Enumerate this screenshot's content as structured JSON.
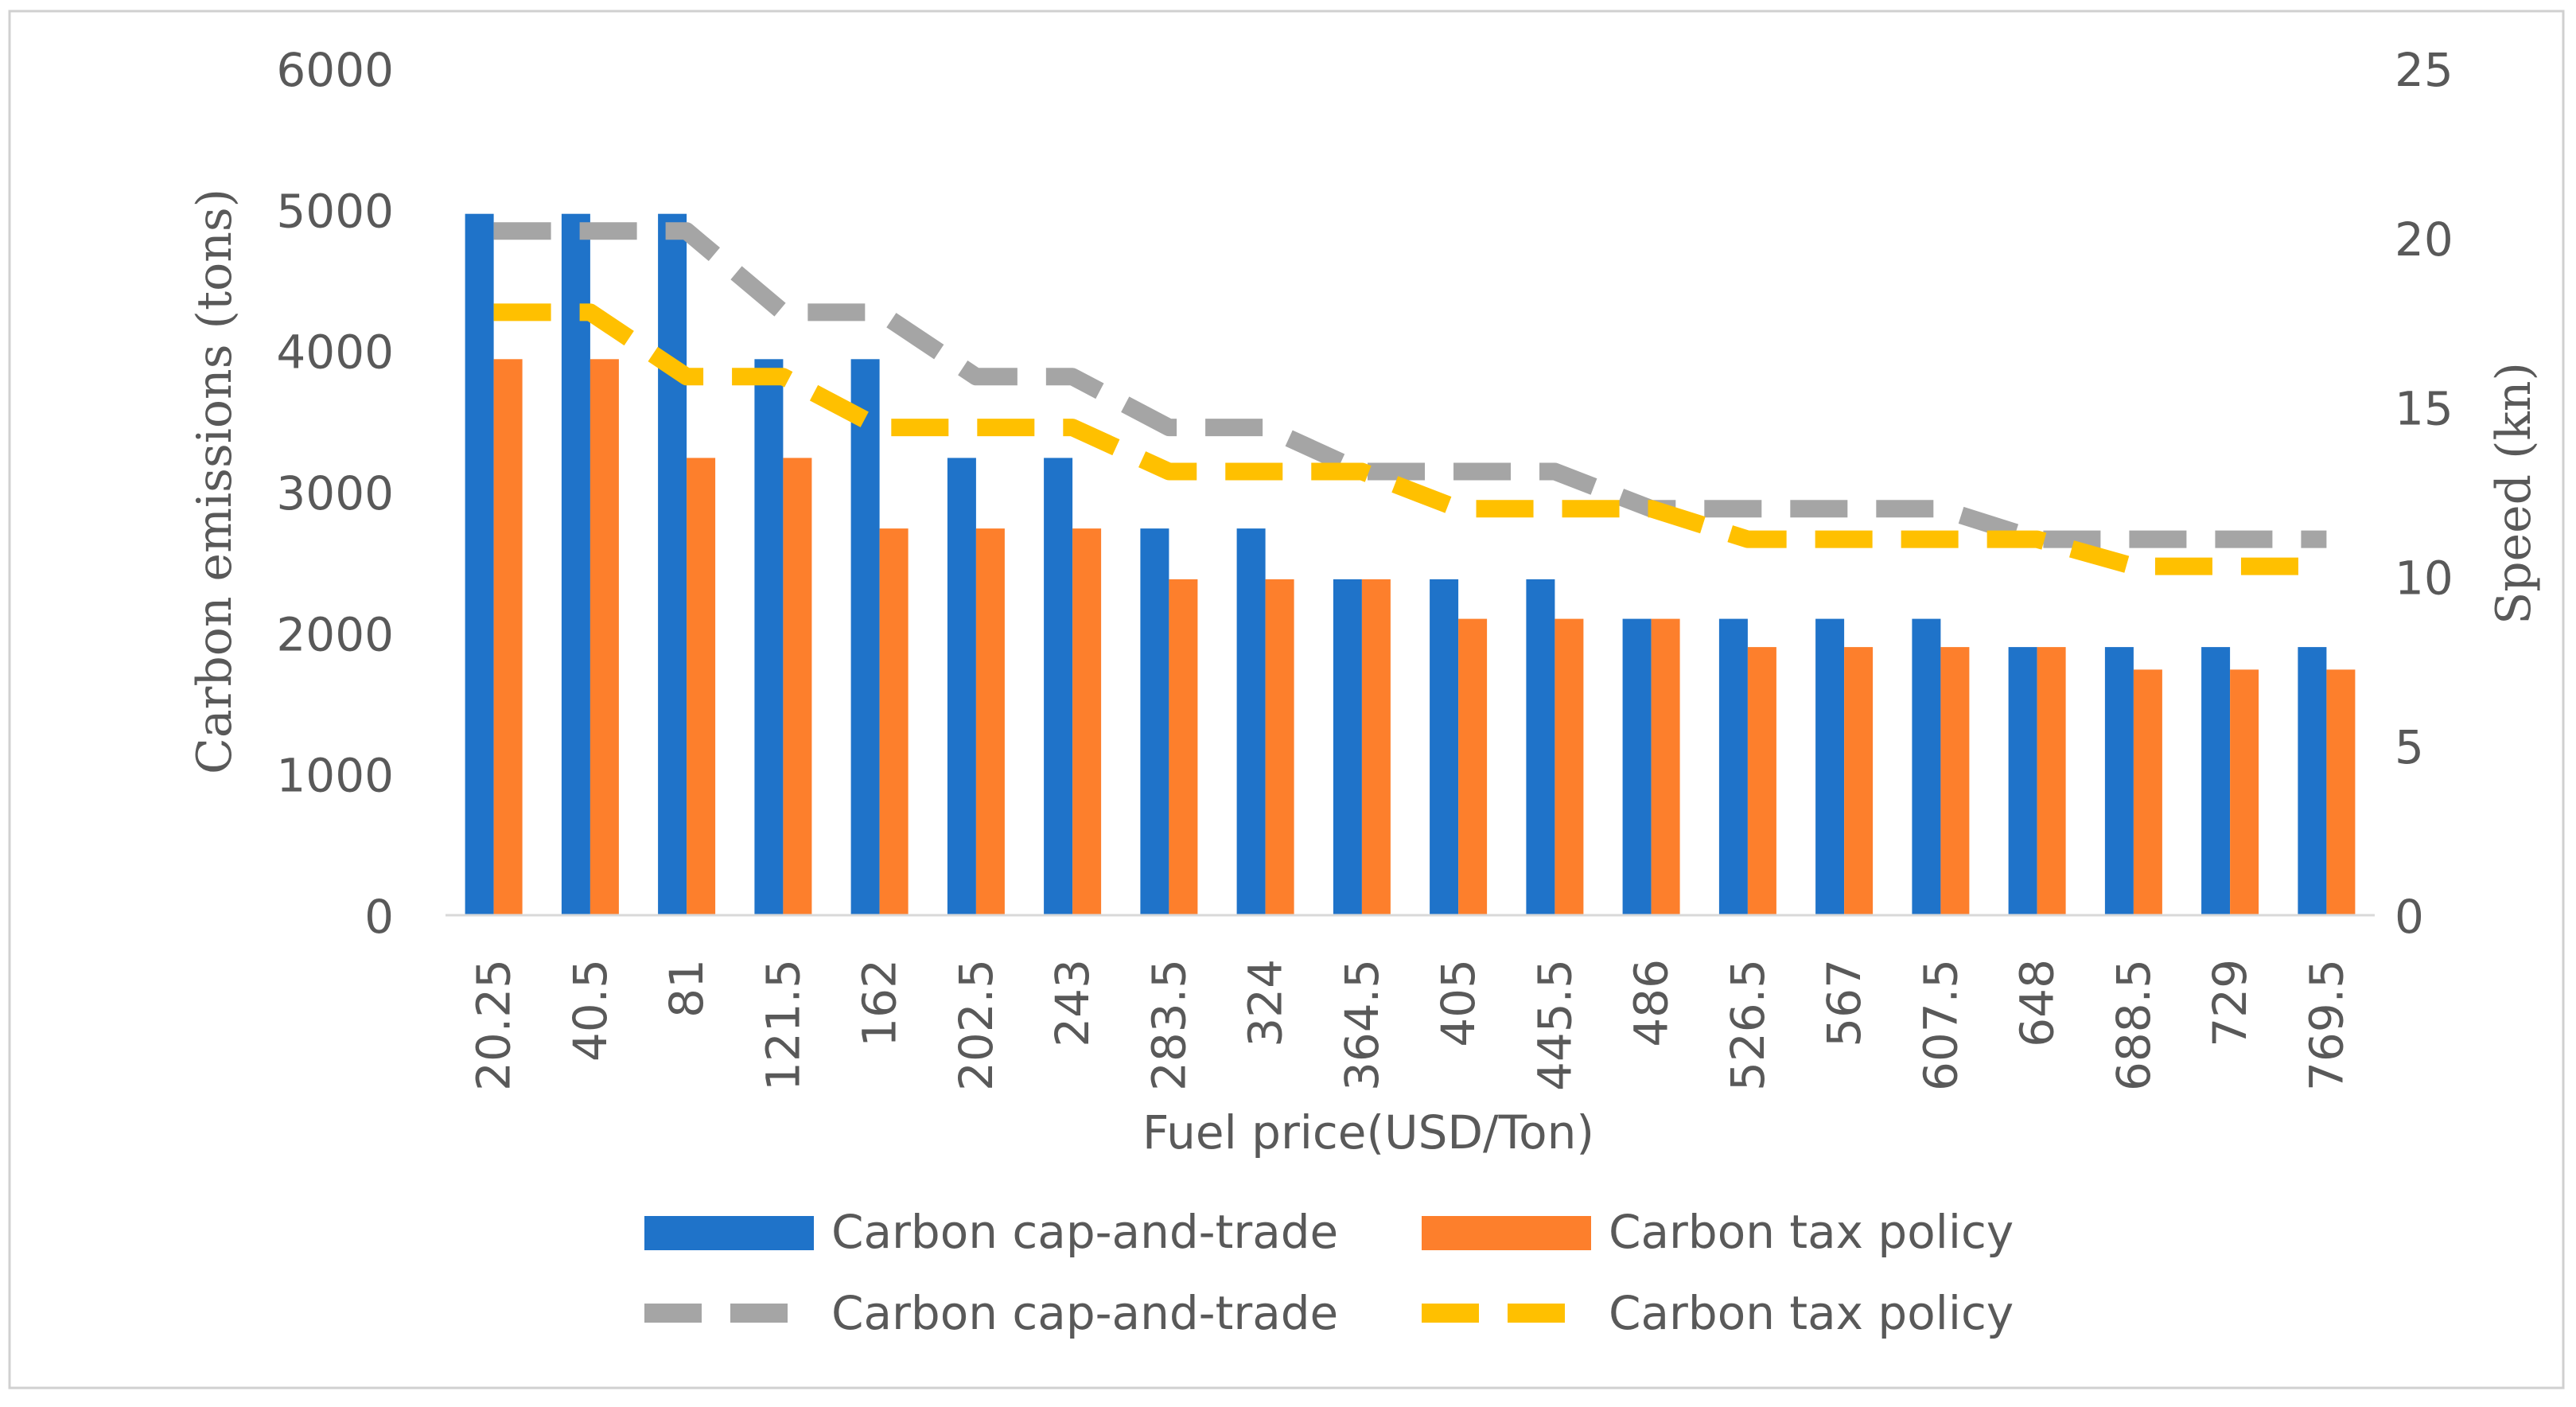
{
  "chart_data": {
    "type": "bar",
    "xlabel": "Fuel price(USD/Ton)",
    "ylabel": "Carbon emissions (tons)",
    "y2label": "Speed (kn)",
    "ylim": [
      0,
      6000
    ],
    "y2lim": [
      0,
      25
    ],
    "yticks": [
      "0",
      "1000",
      "2000",
      "3000",
      "4000",
      "5000",
      "6000"
    ],
    "y2ticks": [
      "0",
      "5",
      "10",
      "15",
      "20",
      "25"
    ],
    "categories": [
      "20.25",
      "40.5",
      "81",
      "121.5",
      "162",
      "202.5",
      "243",
      "283.5",
      "324",
      "364.5",
      "405",
      "445.5",
      "486",
      "526.5",
      "567",
      "607.5",
      "648",
      "688.5",
      "729",
      "769.5"
    ],
    "bar_series": [
      {
        "name": "Carbon cap-and-trade",
        "color": "#1f73c9",
        "values": [
          4970,
          4970,
          4970,
          3940,
          3940,
          3240,
          3240,
          2740,
          2740,
          2380,
          2380,
          2380,
          2100,
          2100,
          2100,
          2100,
          1900,
          1900,
          1900,
          1900
        ]
      },
      {
        "name": "Carbon tax policy",
        "color": "#fd7f2c",
        "values": [
          3940,
          3940,
          3240,
          3240,
          2740,
          2740,
          2740,
          2380,
          2380,
          2380,
          2100,
          2100,
          2100,
          1900,
          1900,
          1900,
          1900,
          1740,
          1740,
          1740
        ]
      }
    ],
    "line_series": [
      {
        "name": "Carbon cap-and-trade",
        "color": "#a5a5a5",
        "axis": "right",
        "values": [
          20.2,
          20.2,
          20.2,
          17.8,
          17.8,
          15.9,
          15.9,
          14.4,
          14.4,
          13.1,
          13.1,
          13.1,
          12.0,
          12.0,
          12.0,
          12.0,
          11.1,
          11.1,
          11.1,
          11.1
        ]
      },
      {
        "name": "Carbon tax policy",
        "color": "#ffc000",
        "axis": "right",
        "values": [
          17.8,
          17.8,
          15.9,
          15.9,
          14.4,
          14.4,
          14.4,
          13.1,
          13.1,
          13.1,
          12.0,
          12.0,
          12.0,
          11.1,
          11.1,
          11.1,
          11.1,
          10.3,
          10.3,
          10.3
        ]
      }
    ],
    "legend": {
      "placement": "bottom",
      "items": [
        "Carbon cap-and-trade",
        "Carbon tax policy",
        "Carbon cap-and-trade",
        "Carbon tax policy"
      ]
    },
    "grid": false
  }
}
